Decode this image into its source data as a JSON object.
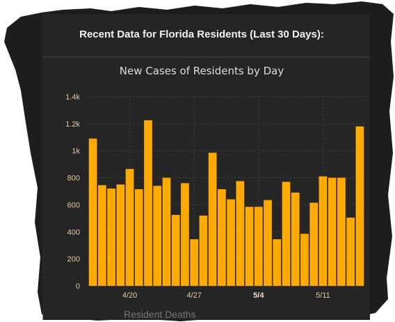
{
  "header": {
    "title": "Recent Data for Florida Residents (Last 30 Days):"
  },
  "below_chart_text": "Resident Deaths",
  "colors": {
    "background": "#ffffff",
    "panel": "#222222",
    "bar": "#ffaa00",
    "grid": "#444444",
    "tick_text": "#e6c9a0"
  },
  "chart_data": {
    "type": "bar",
    "title": "New Cases of Residents by Day",
    "xlabel": "",
    "ylabel": "",
    "ylim": [
      0,
      1400
    ],
    "y_ticks": [
      "0",
      "200",
      "400",
      "600",
      "800",
      "1k",
      "1.2k",
      "1.4k"
    ],
    "x_tick_labels": [
      {
        "label": "4/20",
        "bar_index": 4,
        "bold": false
      },
      {
        "label": "4/27",
        "bar_index": 11,
        "bold": false
      },
      {
        "label": "5/4",
        "bar_index": 18,
        "bold": true
      },
      {
        "label": "5/11",
        "bar_index": 25,
        "bold": false
      }
    ],
    "values": [
      1090,
      745,
      720,
      750,
      865,
      715,
      1225,
      740,
      800,
      525,
      760,
      345,
      520,
      985,
      715,
      640,
      775,
      585,
      585,
      635,
      345,
      770,
      690,
      385,
      615,
      810,
      800,
      800,
      505,
      1180
    ],
    "grid": true,
    "legend": "none"
  }
}
